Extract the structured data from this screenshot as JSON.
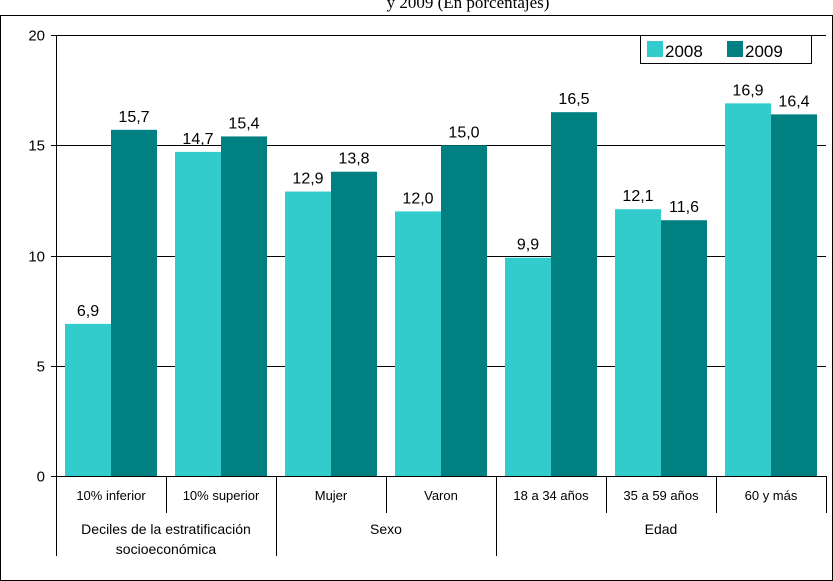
{
  "chart_data": {
    "type": "bar",
    "title": "y 2009 (En porcentajes)",
    "categories": [
      "10% inferior",
      "10% superior",
      "Mujer",
      "Varon",
      "18 a 34 años",
      "35 a 59 años",
      "60 y más"
    ],
    "groups": [
      {
        "label": "Deciles de la estratificación socioeconómica",
        "label_lines": [
          "Deciles de la estratificación",
          "socioeconómica"
        ],
        "categories": [
          "10% inferior",
          "10% superior"
        ]
      },
      {
        "label": "Sexo",
        "label_lines": [
          "Sexo"
        ],
        "categories": [
          "Mujer",
          "Varon"
        ]
      },
      {
        "label": "Edad",
        "label_lines": [
          "Edad"
        ],
        "categories": [
          "18 a 34 años",
          "35 a 59 años",
          "60 y más"
        ]
      }
    ],
    "series": [
      {
        "name": "2008",
        "color": "#33CCCC",
        "values": [
          6.9,
          14.7,
          12.9,
          12.0,
          9.9,
          12.1,
          16.9
        ],
        "labels": [
          "6,9",
          "14,7",
          "12,9",
          "12,0",
          "9,9",
          "12,1",
          "16,9"
        ]
      },
      {
        "name": "2009",
        "color": "#008080",
        "values": [
          15.7,
          15.4,
          13.8,
          15.0,
          16.5,
          11.6,
          16.4
        ],
        "labels": [
          "15,7",
          "15,4",
          "13,8",
          "15,0",
          "16,5",
          "11,6",
          "16,4"
        ]
      }
    ],
    "yticks": [
      0,
      5,
      10,
      15,
      20
    ],
    "ytick_labels": [
      "0",
      "5",
      "10",
      "15",
      "20"
    ],
    "ylim": [
      0,
      20
    ],
    "xlabel": "",
    "ylabel": "",
    "legend_position": "top-right",
    "grid": true
  }
}
